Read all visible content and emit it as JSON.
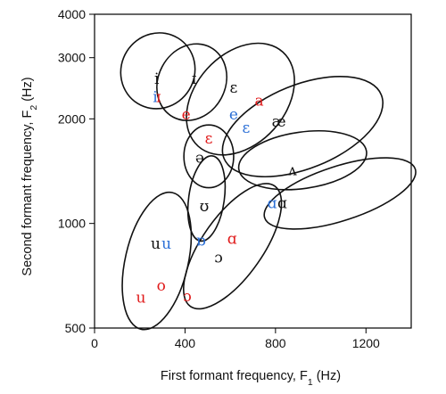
{
  "chart_data": {
    "type": "scatter",
    "title": "",
    "xlabel": "First formant frequency, F",
    "xlabel_subscript": "1",
    "xlabel_unit": " (Hz)",
    "ylabel": "Second formant frequency, F",
    "ylabel_subscript": "2",
    "ylabel_unit": " (Hz)",
    "xlim": [
      0,
      1400
    ],
    "ylim": [
      500,
      4000
    ],
    "yscale": "log",
    "grid": false,
    "legend": "none",
    "x_ticks": [
      0,
      400,
      800,
      1200
    ],
    "x_tick_labels": [
      "0",
      "400",
      "800",
      "1200"
    ],
    "y_ticks": [
      500,
      1000,
      2000,
      3000,
      4000
    ],
    "y_tick_labels": [
      "500",
      "1000",
      "2000",
      "3000",
      "4000"
    ],
    "colors": {
      "black": "#111111",
      "red": "#e01a1a",
      "blue": "#2b6fd6"
    },
    "points": [
      {
        "label": "i",
        "x": 275,
        "y": 2600,
        "color": "black"
      },
      {
        "label": "i",
        "x": 268,
        "y": 2300,
        "color": "blue"
      },
      {
        "label": "ɪ",
        "x": 283,
        "y": 2300,
        "color": "red"
      },
      {
        "label": "ɪ",
        "x": 440,
        "y": 2600,
        "color": "black"
      },
      {
        "label": "e",
        "x": 405,
        "y": 2050,
        "color": "red"
      },
      {
        "label": "ɛ",
        "x": 615,
        "y": 2450,
        "color": "black"
      },
      {
        "label": "a",
        "x": 728,
        "y": 2250,
        "color": "red"
      },
      {
        "label": "e",
        "x": 615,
        "y": 2050,
        "color": "blue"
      },
      {
        "label": "ɛ",
        "x": 670,
        "y": 1880,
        "color": "blue"
      },
      {
        "label": "æ",
        "x": 815,
        "y": 1960,
        "color": "black"
      },
      {
        "label": "ɛ",
        "x": 505,
        "y": 1750,
        "color": "red"
      },
      {
        "label": "ə",
        "x": 465,
        "y": 1540,
        "color": "black"
      },
      {
        "label": "ʌ",
        "x": 875,
        "y": 1420,
        "color": "black"
      },
      {
        "label": "ʊ",
        "x": 485,
        "y": 1115,
        "color": "black"
      },
      {
        "label": "ɑ",
        "x": 785,
        "y": 1140,
        "color": "blue"
      },
      {
        "label": "ɑ",
        "x": 830,
        "y": 1140,
        "color": "black"
      },
      {
        "label": "u",
        "x": 270,
        "y": 870,
        "color": "black"
      },
      {
        "label": "u",
        "x": 318,
        "y": 870,
        "color": "blue"
      },
      {
        "label": "ɒ",
        "x": 470,
        "y": 890,
        "color": "blue"
      },
      {
        "label": "ɑ",
        "x": 608,
        "y": 900,
        "color": "red"
      },
      {
        "label": "ɔ",
        "x": 548,
        "y": 795,
        "color": "black"
      },
      {
        "label": "o",
        "x": 295,
        "y": 660,
        "color": "red"
      },
      {
        "label": "u",
        "x": 205,
        "y": 610,
        "color": "red"
      },
      {
        "label": "ɔ",
        "x": 410,
        "y": 615,
        "color": "red"
      }
    ],
    "regions": [
      {
        "vowel": "i",
        "cx": 280,
        "cy": 2750,
        "rx_hz": 340,
        "ry_oct": 0.35,
        "angle": -58
      },
      {
        "vowel": "ɪ",
        "cx": 430,
        "cy": 2550,
        "rx_hz": 350,
        "ry_oct": 0.32,
        "angle": -62
      },
      {
        "vowel": "ɛ",
        "cx": 645,
        "cy": 2280,
        "rx_hz": 560,
        "ry_oct": 0.43,
        "angle": -48
      },
      {
        "vowel": "æ",
        "cx": 920,
        "cy": 1900,
        "rx_hz": 750,
        "ry_oct": 0.4,
        "angle": -22
      },
      {
        "vowel": "ə",
        "cx": 505,
        "cy": 1560,
        "rx_hz": 220,
        "ry_oct": 0.3,
        "angle": 0
      },
      {
        "vowel": "ʌ",
        "cx": 920,
        "cy": 1520,
        "rx_hz": 570,
        "ry_oct": 0.27,
        "angle": -8
      },
      {
        "vowel": "ʊ",
        "cx": 495,
        "cy": 1180,
        "rx_hz": 380,
        "ry_oct": 0.17,
        "angle": -82
      },
      {
        "vowel": "ɑ",
        "cx": 1085,
        "cy": 1220,
        "rx_hz": 700,
        "ry_oct": 0.26,
        "angle": -18
      },
      {
        "vowel": "u",
        "cx": 275,
        "cy": 780,
        "rx_hz": 620,
        "ry_oct": 0.3,
        "angle": -77
      },
      {
        "vowel": "ɔ",
        "cx": 610,
        "cy": 860,
        "rx_hz": 650,
        "ry_oct": 0.29,
        "angle": -55
      }
    ]
  }
}
